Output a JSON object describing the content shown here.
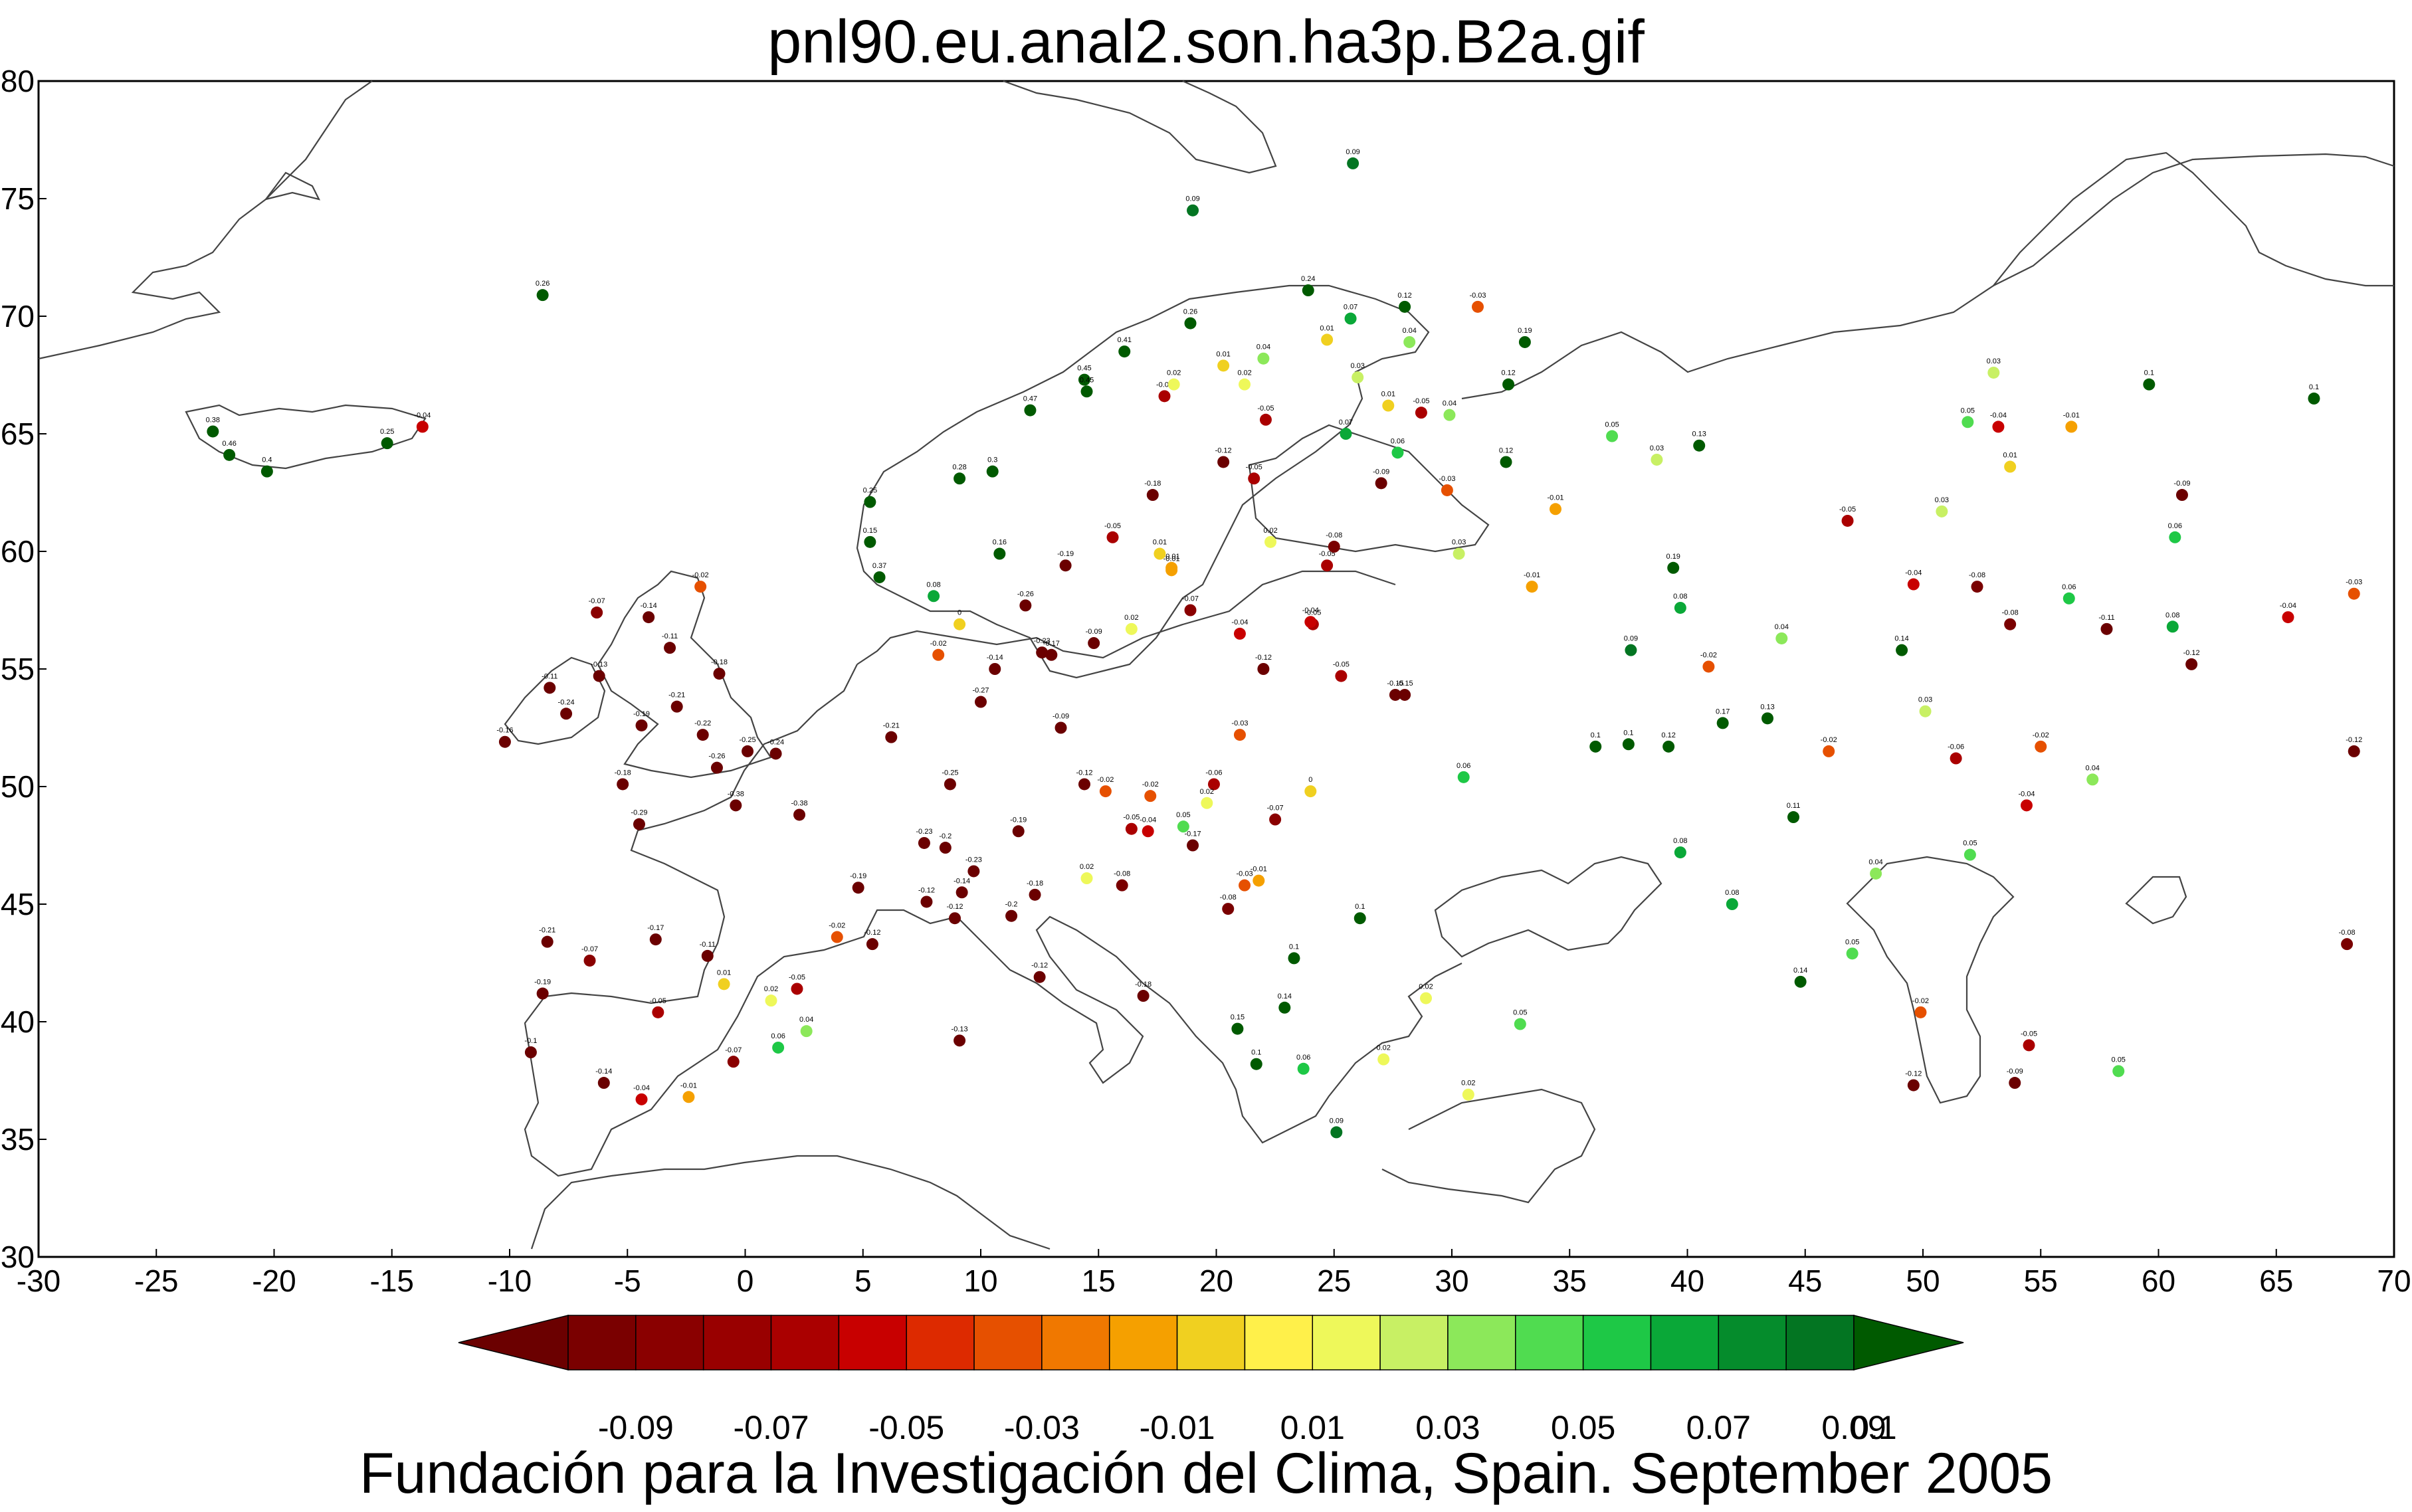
{
  "title": "pnl90.eu.anal2.son.ha3p.B2a.gif",
  "footer": "Fundación para la Investigación del Clima, Spain. September 2005",
  "map": {
    "lon_range": [
      -30,
      70
    ],
    "lat_range": [
      30,
      80
    ],
    "x_ticks": [
      -30,
      -25,
      -20,
      -15,
      -10,
      -5,
      0,
      5,
      10,
      15,
      20,
      25,
      30,
      35,
      40,
      45,
      50,
      55,
      60,
      65,
      70
    ],
    "y_ticks": [
      30,
      35,
      40,
      45,
      50,
      55,
      60,
      65,
      70,
      75,
      80
    ]
  },
  "colorbar": {
    "colors": [
      "#6b0000",
      "#7a0000",
      "#8a0000",
      "#990000",
      "#aa0000",
      "#c80000",
      "#dd2a00",
      "#e65000",
      "#f07800",
      "#f5a000",
      "#f0d020",
      "#fff04a",
      "#eef85a",
      "#c8f064",
      "#8ce85a",
      "#50dc50",
      "#1ec846",
      "#0aa838",
      "#058c2c",
      "#037522",
      "#005a00"
    ],
    "labels": [
      "-0.09",
      "-0.07",
      "-0.05",
      "-0.03",
      "-0.01",
      "0.01",
      "0.03",
      "0.05",
      "0.07",
      "0.09",
      "0.1"
    ]
  },
  "chart_data": {
    "type": "scatter",
    "title": "pnl90.eu.anal2.son.ha3p.B2a.gif",
    "xlabel": "",
    "ylabel": "",
    "xlim": [
      -30,
      70
    ],
    "ylim": [
      30,
      80
    ],
    "points": [
      {
        "lon": -22.6,
        "lat": 65.1,
        "v": 0.38
      },
      {
        "lon": -21.9,
        "lat": 64.1,
        "v": 0.46
      },
      {
        "lon": -20.3,
        "lat": 63.4,
        "v": 0.4
      },
      {
        "lon": -15.2,
        "lat": 64.6,
        "v": 0.25
      },
      {
        "lon": -13.7,
        "lat": 65.3,
        "v": -0.04
      },
      {
        "lon": -8.6,
        "lat": 70.9,
        "v": 0.26
      },
      {
        "lon": -10.2,
        "lat": 51.9,
        "v": -0.16
      },
      {
        "lon": -8.3,
        "lat": 54.2,
        "v": -0.11
      },
      {
        "lon": -7.6,
        "lat": 53.1,
        "v": -0.24
      },
      {
        "lon": -6.3,
        "lat": 57.4,
        "v": -0.07
      },
      {
        "lon": -6.2,
        "lat": 54.7,
        "v": -0.13
      },
      {
        "lon": -4.1,
        "lat": 57.2,
        "v": -0.14
      },
      {
        "lon": -3.2,
        "lat": 55.9,
        "v": -0.11
      },
      {
        "lon": -4.4,
        "lat": 52.6,
        "v": -0.19
      },
      {
        "lon": -2.9,
        "lat": 53.4,
        "v": -0.21
      },
      {
        "lon": -5.2,
        "lat": 50.1,
        "v": -0.18
      },
      {
        "lon": -1.8,
        "lat": 52.2,
        "v": -0.22
      },
      {
        "lon": -1.2,
        "lat": 50.8,
        "v": -0.26
      },
      {
        "lon": 1.3,
        "lat": 51.4,
        "v": -0.24
      },
      {
        "lon": 0.1,
        "lat": 51.5,
        "v": -0.25
      },
      {
        "lon": -1.9,
        "lat": 58.5,
        "v": -0.02
      },
      {
        "lon": -1.1,
        "lat": 54.8,
        "v": -0.18
      },
      {
        "lon": -4.5,
        "lat": 48.4,
        "v": -0.29
      },
      {
        "lon": -0.4,
        "lat": 49.2,
        "v": -0.38
      },
      {
        "lon": 2.3,
        "lat": 48.8,
        "v": -0.38
      },
      {
        "lon": 4.8,
        "lat": 45.7,
        "v": -0.19
      },
      {
        "lon": 5.4,
        "lat": 43.3,
        "v": -0.12
      },
      {
        "lon": 3.9,
        "lat": 43.6,
        "v": -0.02
      },
      {
        "lon": 2.2,
        "lat": 41.4,
        "v": -0.05
      },
      {
        "lon": -0.5,
        "lat": 38.3,
        "v": -0.07
      },
      {
        "lon": -3.7,
        "lat": 40.4,
        "v": -0.05
      },
      {
        "lon": -8.6,
        "lat": 41.2,
        "v": -0.19
      },
      {
        "lon": -9.1,
        "lat": 38.7,
        "v": -0.1
      },
      {
        "lon": -6.0,
        "lat": 37.4,
        "v": -0.14
      },
      {
        "lon": -4.4,
        "lat": 36.7,
        "v": -0.04
      },
      {
        "lon": -2.4,
        "lat": 36.8,
        "v": -0.01
      },
      {
        "lon": 1.4,
        "lat": 38.9,
        "v": 0.06
      },
      {
        "lon": 2.6,
        "lat": 39.6,
        "v": 0.04
      },
      {
        "lon": -0.9,
        "lat": 41.6,
        "v": 0.01
      },
      {
        "lon": 1.1,
        "lat": 40.9,
        "v": 0.02
      },
      {
        "lon": -1.6,
        "lat": 42.8,
        "v": -0.11
      },
      {
        "lon": -3.8,
        "lat": 43.5,
        "v": -0.17
      },
      {
        "lon": -8.4,
        "lat": 43.4,
        "v": -0.21
      },
      {
        "lon": -6.6,
        "lat": 42.6,
        "v": -0.07
      },
      {
        "lon": 6.2,
        "lat": 52.1,
        "v": -0.21
      },
      {
        "lon": 8.7,
        "lat": 50.1,
        "v": -0.25
      },
      {
        "lon": 10.0,
        "lat": 53.6,
        "v": -0.27
      },
      {
        "lon": 13.4,
        "lat": 52.5,
        "v": -0.09
      },
      {
        "lon": 11.6,
        "lat": 48.1,
        "v": -0.19
      },
      {
        "lon": 7.6,
        "lat": 47.6,
        "v": -0.23
      },
      {
        "lon": 8.5,
        "lat": 47.4,
        "v": -0.2
      },
      {
        "lon": 9.7,
        "lat": 46.4,
        "v": -0.23
      },
      {
        "lon": 12.3,
        "lat": 45.4,
        "v": -0.18
      },
      {
        "lon": 11.3,
        "lat": 44.5,
        "v": -0.2
      },
      {
        "lon": 9.2,
        "lat": 45.5,
        "v": -0.14
      },
      {
        "lon": 7.7,
        "lat": 45.1,
        "v": -0.12
      },
      {
        "lon": 8.9,
        "lat": 44.4,
        "v": -0.12
      },
      {
        "lon": 12.5,
        "lat": 41.9,
        "v": -0.12
      },
      {
        "lon": 16.9,
        "lat": 41.1,
        "v": -0.18
      },
      {
        "lon": 9.1,
        "lat": 39.2,
        "v": -0.13
      },
      {
        "lon": 16.4,
        "lat": 48.2,
        "v": -0.05
      },
      {
        "lon": 14.4,
        "lat": 50.1,
        "v": -0.12
      },
      {
        "lon": 17.1,
        "lat": 48.1,
        "v": -0.04
      },
      {
        "lon": 19.0,
        "lat": 47.5,
        "v": -0.17
      },
      {
        "lon": 21.0,
        "lat": 52.2,
        "v": -0.03
      },
      {
        "lon": 19.9,
        "lat": 50.1,
        "v": -0.06
      },
      {
        "lon": 24.0,
        "lat": 49.8,
        "v": 0.0
      },
      {
        "lon": 26.1,
        "lat": 44.4,
        "v": 0.1
      },
      {
        "lon": 23.3,
        "lat": 42.7,
        "v": 0.1
      },
      {
        "lon": 20.5,
        "lat": 44.8,
        "v": -0.08
      },
      {
        "lon": 16.0,
        "lat": 45.8,
        "v": -0.08
      },
      {
        "lon": 14.5,
        "lat": 46.1,
        "v": 0.02
      },
      {
        "lon": 21.2,
        "lat": 45.8,
        "v": -0.03
      },
      {
        "lon": 22.9,
        "lat": 40.6,
        "v": 0.14
      },
      {
        "lon": 23.7,
        "lat": 38.0,
        "v": 0.06
      },
      {
        "lon": 25.1,
        "lat": 35.3,
        "v": 0.09
      },
      {
        "lon": 21.7,
        "lat": 38.2,
        "v": 0.1
      },
      {
        "lon": 20.9,
        "lat": 39.7,
        "v": 0.15
      },
      {
        "lon": 28.9,
        "lat": 41.0,
        "v": 0.02
      },
      {
        "lon": 27.1,
        "lat": 38.4,
        "v": 0.02
      },
      {
        "lon": 30.7,
        "lat": 36.9,
        "v": 0.02
      },
      {
        "lon": 32.9,
        "lat": 39.9,
        "v": 0.05
      },
      {
        "lon": 30.5,
        "lat": 50.4,
        "v": 0.06
      },
      {
        "lon": 28.0,
        "lat": 53.9,
        "v": -0.15
      },
      {
        "lon": 24.1,
        "lat": 56.9,
        "v": -0.05
      },
      {
        "lon": 25.3,
        "lat": 54.7,
        "v": -0.05
      },
      {
        "lon": 27.6,
        "lat": 53.9,
        "v": -0.15
      },
      {
        "lon": 30.3,
        "lat": 59.9,
        "v": 0.03
      },
      {
        "lon": 24.7,
        "lat": 59.4,
        "v": -0.05
      },
      {
        "lon": 25.0,
        "lat": 60.2,
        "v": -0.08
      },
      {
        "lon": 22.3,
        "lat": 60.4,
        "v": 0.02
      },
      {
        "lon": 21.6,
        "lat": 63.1,
        "v": -0.05
      },
      {
        "lon": 25.5,
        "lat": 65.0,
        "v": 0.07
      },
      {
        "lon": 27.7,
        "lat": 64.2,
        "v": 0.06
      },
      {
        "lon": 27.0,
        "lat": 62.9,
        "v": -0.09
      },
      {
        "lon": 29.8,
        "lat": 62.6,
        "v": -0.03
      },
      {
        "lon": 25.7,
        "lat": 69.9,
        "v": 0.07
      },
      {
        "lon": 23.9,
        "lat": 71.1,
        "v": 0.24
      },
      {
        "lon": 28.0,
        "lat": 70.4,
        "v": 0.12
      },
      {
        "lon": 31.1,
        "lat": 70.4,
        "v": -0.03
      },
      {
        "lon": 33.1,
        "lat": 68.9,
        "v": 0.19
      },
      {
        "lon": 32.4,
        "lat": 67.1,
        "v": 0.12
      },
      {
        "lon": 36.8,
        "lat": 64.9,
        "v": 0.05
      },
      {
        "lon": 40.5,
        "lat": 64.5,
        "v": 0.13
      },
      {
        "lon": 38.7,
        "lat": 63.9,
        "v": 0.03
      },
      {
        "lon": 32.3,
        "lat": 63.8,
        "v": 0.12
      },
      {
        "lon": 34.4,
        "lat": 61.8,
        "v": -0.01
      },
      {
        "lon": 37.6,
        "lat": 55.8,
        "v": 0.09
      },
      {
        "lon": 39.7,
        "lat": 57.6,
        "v": 0.08
      },
      {
        "lon": 39.4,
        "lat": 59.3,
        "v": 0.19
      },
      {
        "lon": 33.4,
        "lat": 58.5,
        "v": -0.01
      },
      {
        "lon": 36.1,
        "lat": 51.7,
        "v": 0.1
      },
      {
        "lon": 37.5,
        "lat": 51.8,
        "v": 0.1
      },
      {
        "lon": 39.2,
        "lat": 51.7,
        "v": 0.12
      },
      {
        "lon": 40.9,
        "lat": 55.1,
        "v": -0.02
      },
      {
        "lon": 44.0,
        "lat": 56.3,
        "v": 0.04
      },
      {
        "lon": 49.1,
        "lat": 55.8,
        "v": 0.14
      },
      {
        "lon": 50.1,
        "lat": 53.2,
        "v": 0.03
      },
      {
        "lon": 46.0,
        "lat": 51.5,
        "v": -0.02
      },
      {
        "lon": 48.0,
        "lat": 46.3,
        "v": 0.04
      },
      {
        "lon": 44.5,
        "lat": 48.7,
        "v": 0.11
      },
      {
        "lon": 41.5,
        "lat": 52.7,
        "v": 0.17
      },
      {
        "lon": 43.4,
        "lat": 52.9,
        "v": 0.13
      },
      {
        "lon": 39.7,
        "lat": 47.2,
        "v": 0.08
      },
      {
        "lon": 41.9,
        "lat": 45.0,
        "v": 0.08
      },
      {
        "lon": 44.8,
        "lat": 41.7,
        "v": 0.14
      },
      {
        "lon": 47.0,
        "lat": 42.9,
        "v": 0.05
      },
      {
        "lon": 49.9,
        "lat": 40.4,
        "v": -0.02
      },
      {
        "lon": 52.0,
        "lat": 47.1,
        "v": 0.05
      },
      {
        "lon": 51.4,
        "lat": 51.2,
        "v": -0.06
      },
      {
        "lon": 55.0,
        "lat": 51.7,
        "v": -0.02
      },
      {
        "lon": 54.4,
        "lat": 49.2,
        "v": -0.04
      },
      {
        "lon": 57.2,
        "lat": 50.3,
        "v": 0.04
      },
      {
        "lon": 56.2,
        "lat": 58.0,
        "v": 0.06
      },
      {
        "lon": 57.8,
        "lat": 56.7,
        "v": -0.11
      },
      {
        "lon": 60.6,
        "lat": 56.8,
        "v": 0.08
      },
      {
        "lon": 61.4,
        "lat": 55.2,
        "v": -0.12
      },
      {
        "lon": 65.5,
        "lat": 57.2,
        "v": -0.04
      },
      {
        "lon": 68.3,
        "lat": 58.2,
        "v": -0.03
      },
      {
        "lon": 66.6,
        "lat": 66.5,
        "v": 0.1
      },
      {
        "lon": 59.6,
        "lat": 67.1,
        "v": 0.1
      },
      {
        "lon": 56.3,
        "lat": 65.3,
        "v": -0.01
      },
      {
        "lon": 53.0,
        "lat": 67.6,
        "v": 0.03
      },
      {
        "lon": 51.9,
        "lat": 65.5,
        "v": 0.05
      },
      {
        "lon": 53.7,
        "lat": 63.6,
        "v": 0.01
      },
      {
        "lon": 50.8,
        "lat": 61.7,
        "v": 0.03
      },
      {
        "lon": 46.8,
        "lat": 61.3,
        "v": -0.05
      },
      {
        "lon": 49.6,
        "lat": 58.6,
        "v": -0.04
      },
      {
        "lon": 52.3,
        "lat": 58.5,
        "v": -0.08
      },
      {
        "lon": 53.7,
        "lat": 56.9,
        "v": -0.08
      },
      {
        "lon": 60.7,
        "lat": 60.6,
        "v": 0.06
      },
      {
        "lon": 61.0,
        "lat": 62.4,
        "v": -0.09
      },
      {
        "lon": 68.3,
        "lat": 51.5,
        "v": -0.12
      },
      {
        "lon": 68.0,
        "lat": 43.3,
        "v": -0.08
      },
      {
        "lon": 58.3,
        "lat": 37.9,
        "v": 0.05
      },
      {
        "lon": 54.5,
        "lat": 39.0,
        "v": -0.05
      },
      {
        "lon": 53.9,
        "lat": 37.4,
        "v": -0.09
      },
      {
        "lon": 49.6,
        "lat": 37.3,
        "v": -0.12
      },
      {
        "lon": 53.2,
        "lat": 65.3,
        "v": -0.04
      },
      {
        "lon": 18.9,
        "lat": 69.7,
        "v": 0.26
      },
      {
        "lon": 16.1,
        "lat": 68.5,
        "v": 0.41
      },
      {
        "lon": 14.4,
        "lat": 67.3,
        "v": 0.45
      },
      {
        "lon": 14.5,
        "lat": 66.8,
        "v": 0.45
      },
      {
        "lon": 12.1,
        "lat": 66.0,
        "v": 0.47
      },
      {
        "lon": 10.5,
        "lat": 63.4,
        "v": 0.3
      },
      {
        "lon": 9.1,
        "lat": 63.1,
        "v": 0.28
      },
      {
        "lon": 5.3,
        "lat": 62.1,
        "v": 0.25
      },
      {
        "lon": 5.3,
        "lat": 60.4,
        "v": 0.15
      },
      {
        "lon": 5.7,
        "lat": 58.9,
        "v": 0.37
      },
      {
        "lon": 10.8,
        "lat": 59.9,
        "v": 0.16
      },
      {
        "lon": 8.0,
        "lat": 58.1,
        "v": 0.08
      },
      {
        "lon": 11.9,
        "lat": 57.7,
        "v": -0.26
      },
      {
        "lon": 13.0,
        "lat": 55.6,
        "v": -0.17
      },
      {
        "lon": 18.1,
        "lat": 59.3,
        "v": -0.01
      },
      {
        "lon": 17.6,
        "lat": 59.9,
        "v": 0.01
      },
      {
        "lon": 15.6,
        "lat": 60.6,
        "v": -0.05
      },
      {
        "lon": 13.6,
        "lat": 59.4,
        "v": -0.19
      },
      {
        "lon": 17.3,
        "lat": 62.4,
        "v": -0.18
      },
      {
        "lon": 20.3,
        "lat": 63.8,
        "v": -0.12
      },
      {
        "lon": 22.1,
        "lat": 65.6,
        "v": -0.05
      },
      {
        "lon": 20.3,
        "lat": 67.9,
        "v": 0.01
      },
      {
        "lon": 21.2,
        "lat": 67.1,
        "v": 0.02
      },
      {
        "lon": 17.8,
        "lat": 66.6,
        "v": -0.05
      },
      {
        "lon": 18.2,
        "lat": 67.1,
        "v": 0.02
      },
      {
        "lon": 22.0,
        "lat": 68.2,
        "v": 0.04
      },
      {
        "lon": 24.7,
        "lat": 69.0,
        "v": 0.01
      },
      {
        "lon": 26.0,
        "lat": 67.4,
        "v": 0.03
      },
      {
        "lon": 28.2,
        "lat": 68.9,
        "v": 0.04
      },
      {
        "lon": 27.3,
        "lat": 66.2,
        "v": 0.01
      },
      {
        "lon": 29.9,
        "lat": 65.8,
        "v": 0.04
      },
      {
        "lon": 28.7,
        "lat": 65.9,
        "v": -0.05
      },
      {
        "lon": 19.0,
        "lat": 74.5,
        "v": 0.09
      },
      {
        "lon": 25.8,
        "lat": 76.5,
        "v": 0.09
      },
      {
        "lon": 9.1,
        "lat": 56.9,
        "v": 0.0
      },
      {
        "lon": 8.2,
        "lat": 55.6,
        "v": -0.02
      },
      {
        "lon": 10.6,
        "lat": 55.0,
        "v": -0.14
      },
      {
        "lon": 12.6,
        "lat": 55.7,
        "v": -0.23
      },
      {
        "lon": 14.8,
        "lat": 56.1,
        "v": -0.09
      },
      {
        "lon": 16.4,
        "lat": 56.7,
        "v": 0.02
      },
      {
        "lon": 18.9,
        "lat": 57.5,
        "v": -0.07
      },
      {
        "lon": 18.1,
        "lat": 59.2,
        "v": -0.01
      },
      {
        "lon": 21.0,
        "lat": 56.5,
        "v": -0.04
      },
      {
        "lon": 24.0,
        "lat": 57.0,
        "v": -0.04
      },
      {
        "lon": 22.0,
        "lat": 55.0,
        "v": -0.12
      },
      {
        "lon": 15.3,
        "lat": 49.8,
        "v": -0.02
      },
      {
        "lon": 17.2,
        "lat": 49.6,
        "v": -0.02
      },
      {
        "lon": 22.5,
        "lat": 48.6,
        "v": -0.07
      },
      {
        "lon": 19.6,
        "lat": 49.3,
        "v": 0.02
      },
      {
        "lon": 18.6,
        "lat": 48.3,
        "v": 0.05
      },
      {
        "lon": 21.8,
        "lat": 46.0,
        "v": -0.01
      }
    ]
  }
}
